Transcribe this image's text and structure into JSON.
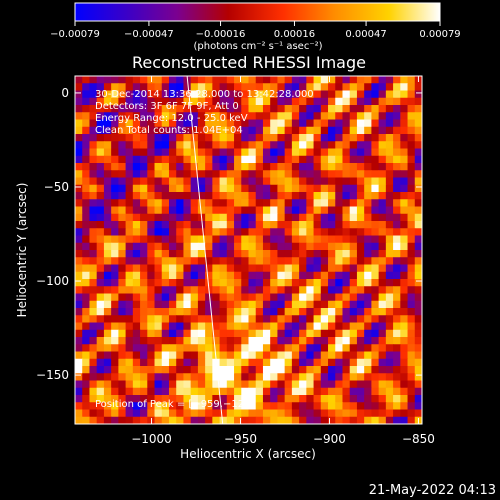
{
  "chart_data": {
    "type": "heatmap",
    "title": "Reconstructed RHESSI Image",
    "xlabel": "Heliocentric X (arcsec)",
    "ylabel": "Heliocentric Y (arcsec)",
    "xlim": [
      -1043,
      -848
    ],
    "ylim": [
      -176,
      9
    ],
    "x_ticks": [
      -1000,
      -950,
      -900,
      -850
    ],
    "x_tick_labels": [
      "−1000",
      "−950",
      "−900",
      "−850"
    ],
    "y_ticks": [
      0,
      -50,
      -100,
      -150
    ],
    "y_tick_labels": [
      "0",
      "−50",
      "−100",
      "−150"
    ],
    "colorbar": {
      "min": -0.00079,
      "max": 0.00079,
      "ticks": [
        -0.00079,
        -0.00047,
        -0.00016,
        0.00016,
        0.00047,
        0.00079
      ],
      "tick_labels": [
        "−0.00079",
        "−0.00047",
        "−0.00016",
        "0.00016",
        "0.00047",
        "0.00079"
      ],
      "unit_label": "(photons cm⁻² s⁻¹ asec⁻²)",
      "colormap": [
        "#0000ff",
        "#3a00c8",
        "#7b0090",
        "#b40000",
        "#ff3000",
        "#ff8c00",
        "#ffd200",
        "#ffffff"
      ]
    },
    "annotations": [
      "30-Dec-2014 13:36:28.000 to 13:42:28.000",
      "Detectors: 3F 6F 7F 9F, Att 0",
      "Energy Range: 12.0 - 25.0 keV",
      "Clean    Total counts: 1.04E+04"
    ],
    "peak_label": "Position of Peak = [−959,−122]",
    "limb_line": [
      [
        -980,
        9
      ],
      [
        -960,
        -176
      ]
    ],
    "grid": false
  },
  "footer_date": "21-May-2022 04:13"
}
